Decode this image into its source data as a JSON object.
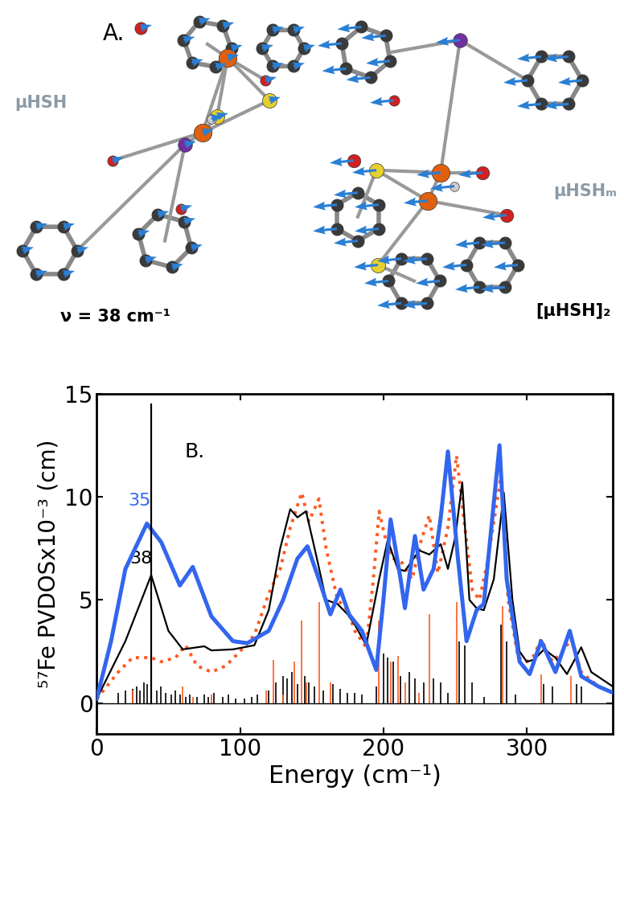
{
  "chart_data": {
    "type": "line",
    "panel_label": "B.",
    "xlabel": "Energy (cm⁻¹)",
    "ylabel": "⁵⁷Fe PVDOSx10⁻³ (cm)",
    "xlim": [
      0,
      360
    ],
    "ylim": [
      -1.5,
      15
    ],
    "xticks": [
      0,
      100,
      200,
      300
    ],
    "yticks": [
      0,
      5,
      10,
      15
    ],
    "grid": false,
    "series": [
      {
        "type": "line",
        "color": "#000000",
        "line_style": "solid",
        "x": [
          0,
          360
        ],
        "values": [
          0,
          0
        ]
      },
      {
        "type": "stick",
        "color": "#000000",
        "line_style": "solid",
        "x": [
          15,
          20,
          25,
          28,
          30,
          33,
          35,
          38,
          42,
          45,
          48,
          52,
          55,
          58,
          62,
          65,
          70,
          75,
          78,
          82,
          88,
          92,
          97,
          103,
          108,
          112,
          120,
          125,
          130,
          133,
          136,
          140,
          145,
          148,
          152,
          158,
          165,
          170,
          175,
          180,
          185,
          195,
          200,
          203,
          207,
          212,
          218,
          222,
          228,
          235,
          240,
          245,
          253,
          257,
          262,
          270,
          282,
          286,
          292,
          312,
          318,
          335,
          338
        ],
        "values": [
          0.5,
          0.6,
          0.7,
          0.8,
          0.6,
          1.0,
          0.9,
          1.3,
          0.6,
          0.8,
          0.5,
          0.4,
          0.6,
          0.4,
          0.3,
          0.4,
          0.3,
          0.4,
          0.3,
          0.5,
          0.3,
          0.4,
          0.2,
          0.2,
          0.3,
          0.4,
          0.6,
          1.0,
          1.3,
          1.2,
          1.5,
          0.9,
          1.3,
          1.0,
          0.8,
          0.6,
          0.9,
          0.7,
          0.5,
          0.5,
          0.4,
          0.8,
          2.4,
          2.2,
          2.0,
          1.3,
          1.5,
          1.2,
          1.0,
          1.2,
          1.0,
          0.5,
          3.0,
          2.8,
          1.0,
          0.3,
          3.8,
          3.0,
          0.4,
          0.9,
          0.8,
          0.9,
          0.8
        ]
      },
      {
        "type": "stick",
        "color": "#ff5a1f",
        "line_style": "solid",
        "x": [
          25,
          38,
          60,
          67,
          80,
          118,
          123,
          130,
          138,
          143,
          146,
          155,
          163,
          197,
          205,
          210,
          215,
          225,
          232,
          251,
          283,
          310,
          331
        ],
        "values": [
          0.6,
          0.9,
          0.8,
          0.3,
          0.4,
          0.6,
          2.1,
          0.4,
          2.0,
          4.0,
          1.0,
          4.9,
          1.0,
          4.0,
          2.0,
          2.3,
          1.0,
          0.5,
          4.3,
          4.9,
          4.7,
          1.4,
          1.3
        ]
      },
      {
        "type": "line",
        "color": "#ff5a1f",
        "line_style": "dotted",
        "x": [
          0,
          15,
          25,
          38,
          45,
          55,
          62,
          70,
          80,
          90,
          100,
          110,
          120,
          128,
          135,
          143,
          148,
          155,
          160,
          168,
          175,
          180,
          188,
          193,
          197,
          202,
          207,
          213,
          220,
          226,
          232,
          238,
          245,
          251,
          256,
          262,
          267,
          273,
          282,
          287,
          294,
          300,
          305,
          310,
          318,
          325,
          331,
          338,
          350,
          360
        ],
        "values": [
          0.2,
          1.5,
          2.2,
          2.2,
          2.0,
          2.2,
          2.8,
          1.8,
          1.5,
          1.8,
          2.5,
          3.3,
          5.3,
          6.5,
          8.5,
          10.2,
          8.8,
          9.9,
          7.5,
          5.0,
          4.5,
          3.5,
          2.7,
          6.0,
          9.3,
          7.8,
          7.0,
          6.8,
          6.0,
          7.8,
          9.1,
          6.3,
          8.5,
          12.0,
          9.0,
          5.5,
          5.0,
          7.0,
          11.0,
          5.0,
          2.2,
          2.0,
          2.3,
          3.1,
          2.0,
          2.5,
          3.1,
          1.5,
          0.8,
          0.5
        ]
      },
      {
        "type": "line",
        "color": "#000000",
        "line_style": "solid",
        "x": [
          0,
          20,
          38,
          50,
          60,
          75,
          80,
          95,
          110,
          120,
          128,
          135,
          140,
          146,
          152,
          160,
          168,
          175,
          180,
          188,
          197,
          203,
          210,
          215,
          225,
          232,
          240,
          245,
          250,
          255,
          260,
          265,
          270,
          277,
          284,
          290,
          295,
          300,
          305,
          312,
          320,
          328,
          338,
          345,
          360
        ],
        "values": [
          0.2,
          3.0,
          6.2,
          3.5,
          2.6,
          2.75,
          2.55,
          2.6,
          2.8,
          4.5,
          7.5,
          9.4,
          9.0,
          9.3,
          7.5,
          5.0,
          4.8,
          4.3,
          3.8,
          2.8,
          6.0,
          7.9,
          6.5,
          6.4,
          7.4,
          7.2,
          7.7,
          6.5,
          8.0,
          10.7,
          5.0,
          4.6,
          4.5,
          6.0,
          10.2,
          5.0,
          2.5,
          2.0,
          2.1,
          2.6,
          2.2,
          1.4,
          2.7,
          1.5,
          0.8
        ]
      },
      {
        "type": "line",
        "color": "#3366ee",
        "line_style": "solid",
        "x": [
          0,
          10,
          20,
          35,
          45,
          58,
          67,
          80,
          95,
          105,
          120,
          130,
          140,
          147,
          155,
          163,
          170,
          176,
          185,
          195,
          200,
          205,
          212,
          215,
          222,
          228,
          235,
          240,
          245,
          252,
          258,
          265,
          270,
          276,
          281,
          286,
          295,
          302,
          310,
          320,
          330,
          338,
          350,
          360
        ],
        "values": [
          0.2,
          3.0,
          6.5,
          8.7,
          7.8,
          5.7,
          6.6,
          4.2,
          3.0,
          2.9,
          3.5,
          5.0,
          7.0,
          7.6,
          6.0,
          4.3,
          5.5,
          4.3,
          3.5,
          1.6,
          5.0,
          8.9,
          6.0,
          4.6,
          8.1,
          5.5,
          6.5,
          9.0,
          12.2,
          7.0,
          3.0,
          4.5,
          4.8,
          9.0,
          12.5,
          6.0,
          2.0,
          1.4,
          3.0,
          1.5,
          3.5,
          1.3,
          0.8,
          0.5
        ]
      },
      {
        "type": "line",
        "color": "#000000",
        "line_style": "solid",
        "x": [
          38,
          38
        ],
        "values": [
          0,
          14.5
        ]
      }
    ],
    "annotations": [
      {
        "text": "35",
        "x": 30,
        "y": 9.4,
        "color": "#3366ee"
      },
      {
        "text": "38",
        "x": 31,
        "y": 6.6,
        "color": "#000000"
      }
    ]
  },
  "diagram": {
    "panel_label": "A.",
    "texts": [
      {
        "text": "μHSH",
        "color": "#8a9aa6"
      },
      {
        "text": "μHSHₘ",
        "color": "#8a9aa6"
      },
      {
        "text": "ν = 38 cm⁻¹",
        "color": "#000000"
      },
      {
        "text": "[μHSH]₂",
        "color": "#000000"
      }
    ]
  }
}
